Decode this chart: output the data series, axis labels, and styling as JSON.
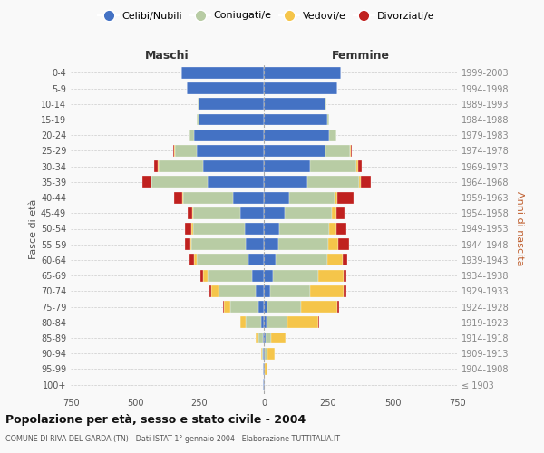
{
  "age_groups": [
    "100+",
    "95-99",
    "90-94",
    "85-89",
    "80-84",
    "75-79",
    "70-74",
    "65-69",
    "60-64",
    "55-59",
    "50-54",
    "45-49",
    "40-44",
    "35-39",
    "30-34",
    "25-29",
    "20-24",
    "15-19",
    "10-14",
    "5-9",
    "0-4"
  ],
  "birth_years": [
    "≤ 1903",
    "1904-1908",
    "1909-1913",
    "1914-1918",
    "1919-1923",
    "1924-1928",
    "1929-1933",
    "1934-1938",
    "1939-1943",
    "1944-1948",
    "1949-1953",
    "1954-1958",
    "1959-1963",
    "1964-1968",
    "1969-1973",
    "1974-1978",
    "1979-1983",
    "1984-1988",
    "1989-1993",
    "1994-1998",
    "1999-2003"
  ],
  "males": {
    "single": [
      2,
      2,
      3,
      5,
      10,
      20,
      30,
      45,
      60,
      70,
      75,
      90,
      120,
      220,
      235,
      260,
      270,
      255,
      255,
      300,
      320
    ],
    "married": [
      0,
      1,
      5,
      15,
      60,
      110,
      145,
      175,
      200,
      210,
      200,
      185,
      195,
      215,
      175,
      85,
      20,
      5,
      2,
      0,
      0
    ],
    "widowed": [
      0,
      1,
      3,
      10,
      20,
      25,
      30,
      15,
      10,
      5,
      5,
      2,
      2,
      2,
      2,
      2,
      0,
      0,
      0,
      0,
      0
    ],
    "divorced": [
      0,
      0,
      0,
      0,
      2,
      5,
      8,
      10,
      20,
      20,
      25,
      20,
      30,
      35,
      15,
      5,
      2,
      0,
      0,
      0,
      0
    ]
  },
  "females": {
    "single": [
      2,
      3,
      5,
      8,
      10,
      15,
      25,
      35,
      45,
      55,
      60,
      80,
      100,
      170,
      180,
      240,
      255,
      245,
      240,
      285,
      300
    ],
    "married": [
      0,
      2,
      8,
      20,
      80,
      130,
      155,
      175,
      200,
      195,
      195,
      185,
      175,
      200,
      180,
      95,
      25,
      8,
      2,
      0,
      0
    ],
    "widowed": [
      2,
      8,
      30,
      55,
      120,
      140,
      130,
      100,
      60,
      40,
      25,
      15,
      10,
      5,
      5,
      2,
      0,
      0,
      0,
      0,
      0
    ],
    "divorced": [
      0,
      0,
      0,
      2,
      5,
      8,
      10,
      10,
      20,
      40,
      40,
      35,
      65,
      40,
      15,
      5,
      2,
      0,
      0,
      0,
      0
    ]
  },
  "colors": {
    "single": "#4472c4",
    "married": "#b8cca4",
    "widowed": "#f5c54a",
    "divorced": "#c0211f"
  },
  "xlim": 750,
  "title": "Popolazione per età, sesso e stato civile - 2004",
  "subtitle": "COMUNE DI RIVA DEL GARDA (TN) - Dati ISTAT 1° gennaio 2004 - Elaborazione TUTTITALIA.IT",
  "ylabel_left": "Fasce di età",
  "ylabel_right": "Anni di nascita",
  "legend_labels": [
    "Celibi/Nubili",
    "Coniugati/e",
    "Vedovi/e",
    "Divorziati/e"
  ],
  "maschi_label": "Maschi",
  "femmine_label": "Femmine",
  "background_color": "#f9f9f9"
}
